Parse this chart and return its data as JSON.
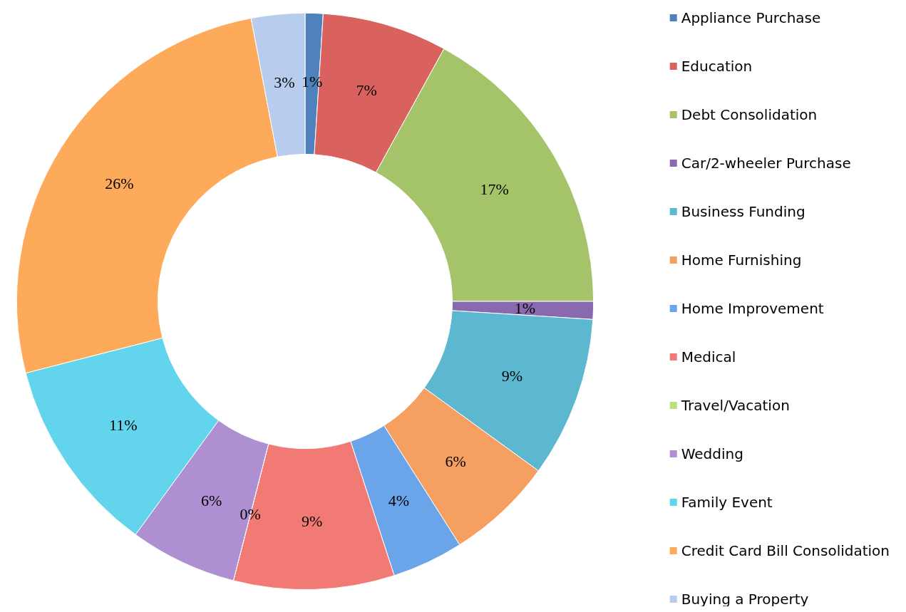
{
  "chart_data": {
    "type": "donut",
    "categories": [
      "Appliance Purchase",
      "Education",
      "Debt Consolidation",
      "Car/2-wheeler Purchase",
      "Business Funding",
      "Home Furnishing",
      "Home Improvement",
      "Medical",
      "Travel/Vacation",
      "Wedding",
      "Family Event",
      "Credit Card Bill Consolidation",
      "Buying a Property"
    ],
    "values": [
      1,
      7,
      17,
      1,
      9,
      6,
      4,
      9,
      0,
      6,
      11,
      26,
      3
    ],
    "value_labels": [
      "1%",
      "7%",
      "17%",
      "1%",
      "9%",
      "6%",
      "4%",
      "9%",
      "0%",
      "6%",
      "11%",
      "26%",
      "3%"
    ],
    "colors": [
      "#4f81bd",
      "#d9625f",
      "#a5c46a",
      "#8a6aae",
      "#5bb8d0",
      "#f5a061",
      "#6aa5ea",
      "#f27a75",
      "#b9e07a",
      "#ad8fd2",
      "#62d5ec",
      "#fdab5a",
      "#b8cdee"
    ],
    "legend": "right"
  }
}
